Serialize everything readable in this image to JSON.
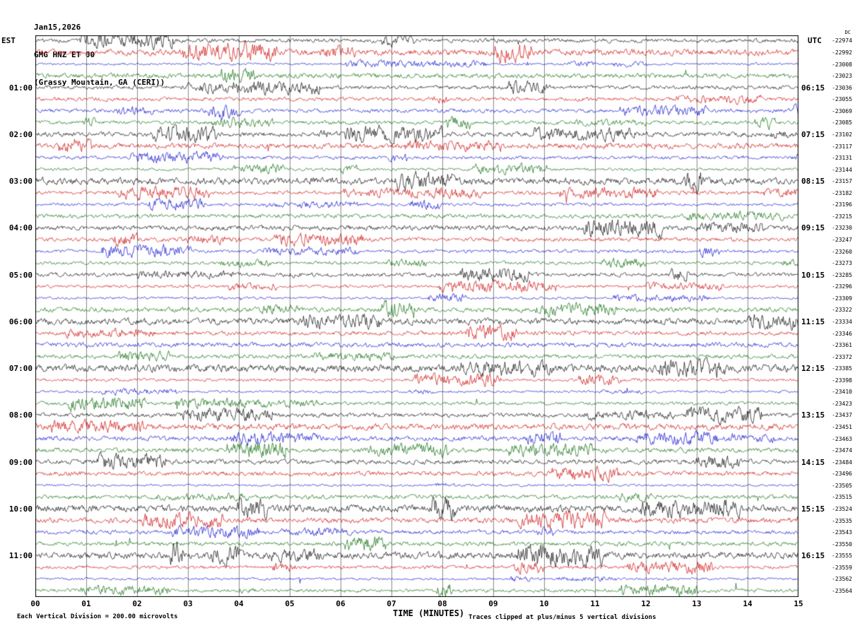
{
  "header": {
    "date": "Jan15,2026",
    "station": "GMG HNZ ET 00",
    "location": "(Grassy Mountain, GA (CERI))"
  },
  "axes": {
    "left_timezone": "EST",
    "right_timezone": "UTC",
    "right_column_header": "DC",
    "x_label": "TIME (MINUTES)",
    "x_ticks": [
      "00",
      "01",
      "02",
      "03",
      "04",
      "05",
      "06",
      "07",
      "08",
      "09",
      "10",
      "11",
      "12",
      "13",
      "14",
      "15"
    ]
  },
  "footer": {
    "scale_note": "Each Vertical Division =  200.00 microvolts",
    "clip_note": "Traces clipped at plus/minus 5 vertical divisions"
  },
  "chart_data": {
    "type": "line",
    "subtype": "helicorder-seismogram",
    "title": "GMG HNZ ET 00 (Grassy Mountain, GA (CERI)) Jan15,2026",
    "xlabel": "TIME (MINUTES)",
    "x_range_minutes": [
      0,
      15
    ],
    "minutes_per_row": 15,
    "grid": "vertical gridlines every 1 minute",
    "note": "Continuous seismic background noise with intermittent small-amplitude bursts; waveform sample values not readable at this scale. DC column lists per-trace DC offset counts.",
    "colors": {
      "black": "#000000",
      "red": "#cc0000",
      "blue": "#0000cc",
      "green": "#006600"
    },
    "trace_color_cycle": [
      "black",
      "red",
      "blue",
      "green"
    ],
    "left_hour_labels": [
      "01:00",
      "02:00",
      "03:00",
      "04:00",
      "05:00",
      "06:00",
      "07:00",
      "08:00",
      "09:00",
      "10:00",
      "11:00"
    ],
    "right_hour_labels": [
      "06:15",
      "07:15",
      "08:15",
      "09:15",
      "10:15",
      "11:15",
      "12:15",
      "13:15",
      "14:15",
      "15:15",
      "16:15"
    ],
    "rows": [
      {
        "t": "00:00",
        "c": "black",
        "dc": -22974
      },
      {
        "t": "00:15",
        "c": "red",
        "dc": -22992
      },
      {
        "t": "00:30",
        "c": "blue",
        "dc": -23008
      },
      {
        "t": "00:45",
        "c": "green",
        "dc": -23023
      },
      {
        "t": "01:00",
        "c": "black",
        "dc": -23036
      },
      {
        "t": "01:15",
        "c": "red",
        "dc": -23055
      },
      {
        "t": "01:30",
        "c": "blue",
        "dc": -23069
      },
      {
        "t": "01:45",
        "c": "green",
        "dc": -23085
      },
      {
        "t": "02:00",
        "c": "black",
        "dc": -23102
      },
      {
        "t": "02:15",
        "c": "red",
        "dc": -23117
      },
      {
        "t": "02:30",
        "c": "blue",
        "dc": -23131
      },
      {
        "t": "02:45",
        "c": "green",
        "dc": -23144
      },
      {
        "t": "03:00",
        "c": "black",
        "dc": -23157
      },
      {
        "t": "03:15",
        "c": "red",
        "dc": -23182
      },
      {
        "t": "03:30",
        "c": "blue",
        "dc": -23196
      },
      {
        "t": "03:45",
        "c": "green",
        "dc": -23215
      },
      {
        "t": "04:00",
        "c": "black",
        "dc": -23230
      },
      {
        "t": "04:15",
        "c": "red",
        "dc": -23247
      },
      {
        "t": "04:30",
        "c": "blue",
        "dc": -23260
      },
      {
        "t": "04:45",
        "c": "green",
        "dc": -23273
      },
      {
        "t": "05:00",
        "c": "black",
        "dc": -23285
      },
      {
        "t": "05:15",
        "c": "red",
        "dc": -23296
      },
      {
        "t": "05:30",
        "c": "blue",
        "dc": -23309
      },
      {
        "t": "05:45",
        "c": "green",
        "dc": -23322
      },
      {
        "t": "06:00",
        "c": "black",
        "dc": -23334
      },
      {
        "t": "06:15",
        "c": "red",
        "dc": -23346
      },
      {
        "t": "06:30",
        "c": "blue",
        "dc": -23361
      },
      {
        "t": "06:45",
        "c": "green",
        "dc": -23372
      },
      {
        "t": "07:00",
        "c": "black",
        "dc": -23385
      },
      {
        "t": "07:15",
        "c": "red",
        "dc": -23398
      },
      {
        "t": "07:30",
        "c": "blue",
        "dc": -23410
      },
      {
        "t": "07:45",
        "c": "green",
        "dc": -23423
      },
      {
        "t": "08:00",
        "c": "black",
        "dc": -23437
      },
      {
        "t": "08:15",
        "c": "red",
        "dc": -23451
      },
      {
        "t": "08:30",
        "c": "blue",
        "dc": -23463
      },
      {
        "t": "08:45",
        "c": "green",
        "dc": -23474
      },
      {
        "t": "09:00",
        "c": "black",
        "dc": -23484
      },
      {
        "t": "09:15",
        "c": "red",
        "dc": -23496
      },
      {
        "t": "09:30",
        "c": "blue",
        "dc": -23505
      },
      {
        "t": "09:45",
        "c": "green",
        "dc": -23515
      },
      {
        "t": "10:00",
        "c": "black",
        "dc": -23524
      },
      {
        "t": "10:15",
        "c": "red",
        "dc": -23535
      },
      {
        "t": "10:30",
        "c": "blue",
        "dc": -23543
      },
      {
        "t": "10:45",
        "c": "green",
        "dc": -23550
      },
      {
        "t": "11:00",
        "c": "black",
        "dc": -23555
      },
      {
        "t": "11:15",
        "c": "red",
        "dc": -23559
      },
      {
        "t": "11:30",
        "c": "blue",
        "dc": -23562
      },
      {
        "t": "11:45",
        "c": "green",
        "dc": -23564
      }
    ]
  }
}
